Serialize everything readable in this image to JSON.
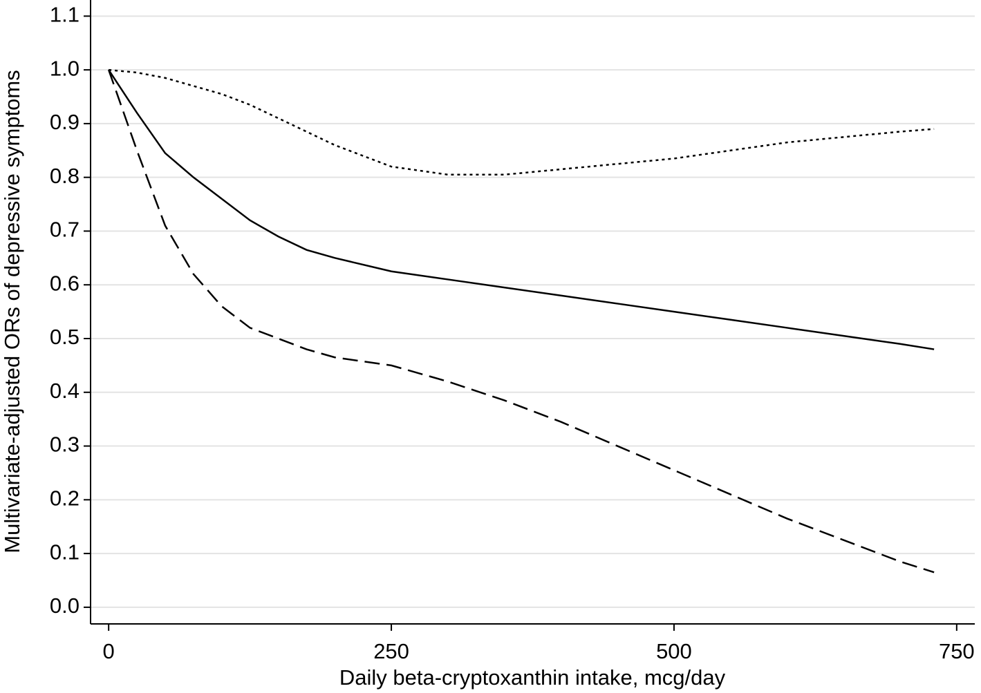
{
  "chart_data": {
    "type": "line",
    "xlabel": "Daily beta-cryptoxanthin intake, mcg/day",
    "ylabel": "Multivariate-adjusted ORs of depressive symptoms",
    "x": [
      0,
      25,
      50,
      75,
      100,
      125,
      150,
      175,
      200,
      250,
      300,
      350,
      400,
      450,
      500,
      550,
      600,
      650,
      700,
      730
    ],
    "series": [
      {
        "color": "#000000",
        "dash": "solid",
        "values": [
          1.0,
          0.92,
          0.845,
          0.8,
          0.76,
          0.72,
          0.69,
          0.665,
          0.65,
          0.625,
          0.61,
          0.595,
          0.58,
          0.565,
          0.55,
          0.535,
          0.52,
          0.505,
          0.49,
          0.48
        ]
      },
      {
        "color": "#000000",
        "dash": "dashed",
        "values": [
          1.0,
          0.85,
          0.71,
          0.62,
          0.56,
          0.52,
          0.5,
          0.48,
          0.465,
          0.45,
          0.42,
          0.385,
          0.345,
          0.3,
          0.255,
          0.21,
          0.165,
          0.125,
          0.085,
          0.065
        ]
      },
      {
        "color": "#000000",
        "dash": "dotted",
        "values": [
          1.0,
          0.995,
          0.985,
          0.97,
          0.955,
          0.935,
          0.91,
          0.885,
          0.86,
          0.82,
          0.805,
          0.805,
          0.815,
          0.825,
          0.835,
          0.85,
          0.865,
          0.875,
          0.885,
          0.89
        ]
      }
    ],
    "xlim": [
      -16,
      766
    ],
    "ylim": [
      -0.031,
      1.13
    ],
    "xticks": [
      0,
      250,
      500,
      750
    ],
    "yticks": [
      {
        "value": 0,
        "label": "0.0"
      },
      0.1,
      0.2,
      0.3,
      0.4,
      0.5,
      0.6,
      0.7,
      0.8,
      0.9,
      {
        "value": 1,
        "label": "1.0"
      },
      1.1
    ],
    "grid": true
  }
}
